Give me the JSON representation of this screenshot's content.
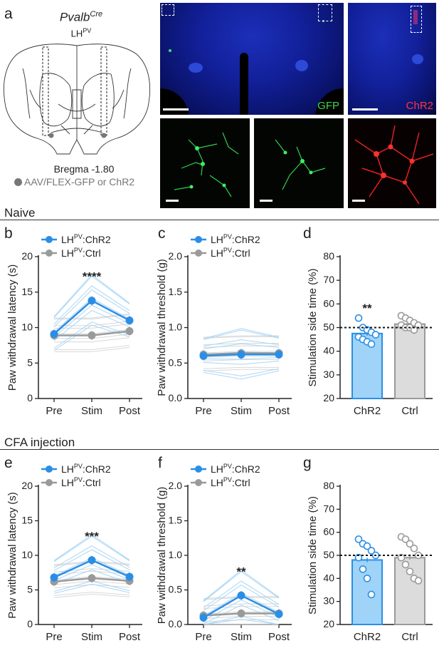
{
  "panel_a": {
    "letter": "a",
    "genotype": "Pvalb",
    "genotype_sup": "Cre",
    "region": "LH",
    "region_sup": "PV",
    "bregma": "Bregma -1.80",
    "injection": "AAV/FLEX-GFP or ChR2",
    "gfp_label": "GFP",
    "chr2_label": "ChR2"
  },
  "sections": {
    "naive": "Naive",
    "cfa": "CFA injection"
  },
  "legend": {
    "chr2": "LH",
    "chr2_sup": "PV",
    "chr2_suffix": ":ChR2",
    "ctrl": "LH",
    "ctrl_sup": "PV",
    "ctrl_suffix": ":Ctrl"
  },
  "colors": {
    "chr2": "#2b8ee6",
    "chr2_light": "#a9d6f5",
    "ctrl": "#9a9a9a",
    "ctrl_light": "#d8d8d8",
    "bar_chr2": "#9fd4f8",
    "bar_ctrl": "#dcdcdc"
  },
  "chart_data": [
    {
      "id": "b",
      "type": "line",
      "letter": "b",
      "ylabel": "Paw withdrawal latency (s)",
      "categories": [
        "Pre",
        "Stim",
        "Post"
      ],
      "ylim": [
        0,
        20
      ],
      "yticks": [
        0,
        5,
        10,
        15,
        20
      ],
      "series": [
        {
          "name": "LH PV:ChR2",
          "values": [
            9.1,
            13.8,
            11.0
          ]
        },
        {
          "name": "LH PV:Ctrl",
          "values": [
            8.9,
            8.9,
            9.5
          ]
        }
      ],
      "annotation": "****"
    },
    {
      "id": "c",
      "type": "line",
      "letter": "c",
      "ylabel": "Paw withdrawal threshold (g)",
      "categories": [
        "Pre",
        "Stim",
        "Post"
      ],
      "ylim": [
        0,
        2.0
      ],
      "yticks": [
        0.0,
        0.5,
        1.0,
        1.5,
        2.0
      ],
      "series": [
        {
          "name": "LH PV:ChR2",
          "values": [
            0.6,
            0.62,
            0.62
          ]
        },
        {
          "name": "LH PV:Ctrl",
          "values": [
            0.62,
            0.64,
            0.64
          ]
        }
      ],
      "annotation": ""
    },
    {
      "id": "d",
      "type": "bar",
      "letter": "d",
      "ylabel": "Stimulation side time (%)",
      "categories": [
        "ChR2",
        "Ctrl"
      ],
      "values": [
        47.5,
        51.5
      ],
      "ylim": [
        20,
        80
      ],
      "yticks": [
        20,
        30,
        40,
        50,
        60,
        70,
        80
      ],
      "reference_line": 50,
      "points": [
        [
          54,
          50,
          49,
          48,
          47,
          46,
          45,
          44,
          43
        ],
        [
          55,
          54,
          53,
          52,
          51,
          51,
          50,
          50,
          49
        ]
      ],
      "annotation": "**"
    },
    {
      "id": "e",
      "type": "line",
      "letter": "e",
      "ylabel": "Paw withdrawal latency (s)",
      "categories": [
        "Pre",
        "Stim",
        "Post"
      ],
      "ylim": [
        0,
        20
      ],
      "yticks": [
        0,
        5,
        10,
        15,
        20
      ],
      "series": [
        {
          "name": "LH PV:ChR2",
          "values": [
            6.8,
            9.3,
            6.9
          ]
        },
        {
          "name": "LH PV:Ctrl",
          "values": [
            6.2,
            6.7,
            6.3
          ]
        }
      ],
      "annotation": "***"
    },
    {
      "id": "f",
      "type": "line",
      "letter": "f",
      "ylabel": "Paw withdrawal threshold (g)",
      "categories": [
        "Pre",
        "Stim",
        "Post"
      ],
      "ylim": [
        0,
        2.0
      ],
      "yticks": [
        0.0,
        0.5,
        1.0,
        1.5,
        2.0
      ],
      "series": [
        {
          "name": "LH PV:ChR2",
          "values": [
            0.1,
            0.42,
            0.15
          ]
        },
        {
          "name": "LH PV:Ctrl",
          "values": [
            0.13,
            0.16,
            0.16
          ]
        }
      ],
      "annotation": "**"
    },
    {
      "id": "g",
      "type": "bar",
      "letter": "g",
      "ylabel": "Stimulation side time (%)",
      "categories": [
        "ChR2",
        "Ctrl"
      ],
      "values": [
        48,
        49
      ],
      "ylim": [
        20,
        80
      ],
      "yticks": [
        20,
        30,
        40,
        50,
        60,
        70,
        80
      ],
      "reference_line": 50,
      "points": [
        [
          57,
          55,
          54,
          52,
          50,
          49,
          44,
          40,
          33
        ],
        [
          58,
          57,
          55,
          53,
          50,
          49,
          46,
          43,
          40,
          39
        ]
      ],
      "annotation": ""
    }
  ]
}
